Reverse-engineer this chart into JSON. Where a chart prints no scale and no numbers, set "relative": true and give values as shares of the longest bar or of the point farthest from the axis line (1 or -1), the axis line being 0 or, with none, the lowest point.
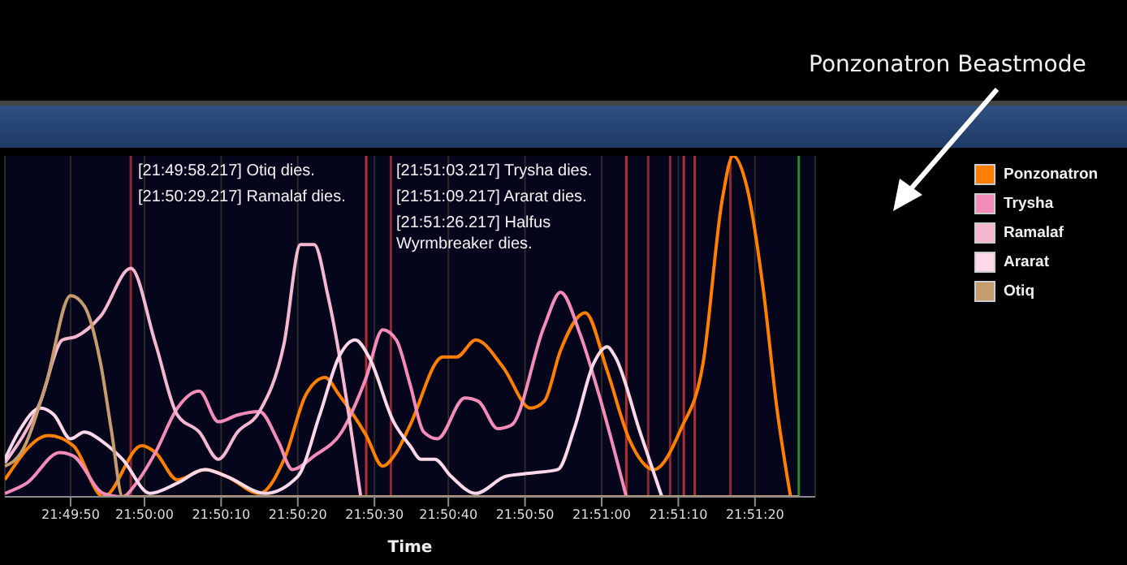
{
  "chart_data": {
    "type": "line",
    "relative": true,
    "xlabel": "Time",
    "legend": "top right",
    "grid": "x",
    "line_style": "solid",
    "xlim": [
      21.8282,
      21.8578
    ],
    "xticks": [
      {
        "value": 21.8306,
        "label": "21:49:50"
      },
      {
        "value": 21.8333,
        "label": "21:50:00"
      },
      {
        "value": 21.8361,
        "label": "21:50:10"
      },
      {
        "value": 21.8389,
        "label": "21:50:20"
      },
      {
        "value": 21.8417,
        "label": "21:50:30"
      },
      {
        "value": 21.8444,
        "label": "21:50:40"
      },
      {
        "value": 21.8472,
        "label": "21:50:50"
      },
      {
        "value": 21.85,
        "label": "21:51:00"
      },
      {
        "value": 21.8528,
        "label": "21:51:10"
      },
      {
        "value": 21.8556,
        "label": "21:51:20"
      }
    ],
    "series": [
      {
        "name": "Ponzonatron",
        "color": "#ff8000",
        "x": [
          21.8282,
          21.8298,
          21.8307,
          21.8318,
          21.8332,
          21.8337,
          21.8345,
          21.8355,
          21.8363,
          21.8375,
          21.8384,
          21.8392,
          21.8399,
          21.8404,
          21.8414,
          21.842,
          21.8425,
          21.843,
          21.8442,
          21.8447,
          21.8454,
          21.8464,
          21.8474,
          21.8479,
          21.8485,
          21.8494,
          21.8502,
          21.851,
          21.8519,
          21.8529,
          21.8537,
          21.8544,
          21.8548,
          21.8553,
          21.8559,
          21.8564,
          21.8569
        ],
        "values": [
          0.05,
          0.18,
          0.15,
          0,
          0.15,
          0.13,
          0.05,
          0.08,
          0.06,
          0.01,
          0.11,
          0.3,
          0.35,
          0.3,
          0.18,
          0.09,
          0.13,
          0.21,
          0.41,
          0.41,
          0.46,
          0.38,
          0.26,
          0.28,
          0.43,
          0.54,
          0.37,
          0.17,
          0.08,
          0.2,
          0.39,
          0.87,
          1,
          0.91,
          0.61,
          0.26,
          0
        ]
      },
      {
        "name": "Trysha",
        "color": "#f48cba",
        "x": [
          21.8282,
          21.829,
          21.8302,
          21.8307,
          21.8318,
          21.8325,
          21.833,
          21.8337,
          21.8345,
          21.8353,
          21.836,
          21.8367,
          21.8375,
          21.8382,
          21.8387,
          21.8395,
          21.8405,
          21.8414,
          21.842,
          21.8425,
          21.843,
          21.8435,
          21.844,
          21.845,
          21.8455,
          21.8462,
          21.8467,
          21.8479,
          21.8485,
          21.8492,
          21.8499,
          21.8509
        ],
        "values": [
          0.01,
          0.04,
          0.13,
          0.12,
          0.01,
          0,
          0.04,
          0.13,
          0.26,
          0.31,
          0.22,
          0.24,
          0.25,
          0.16,
          0.08,
          0.12,
          0.19,
          0.35,
          0.49,
          0.46,
          0.33,
          0.19,
          0.17,
          0.29,
          0.28,
          0.2,
          0.21,
          0.5,
          0.6,
          0.48,
          0.3,
          0
        ]
      },
      {
        "name": "Ramalaf",
        "color": "#f5b8d0",
        "x": [
          21.8282,
          21.8295,
          21.8303,
          21.8308,
          21.8317,
          21.8328,
          21.8337,
          21.8345,
          21.8353,
          21.836,
          21.8367,
          21.8375,
          21.8384,
          21.839,
          21.8395,
          21.84,
          21.8412
        ],
        "values": [
          0.1,
          0.28,
          0.46,
          0.47,
          0.53,
          0.67,
          0.45,
          0.24,
          0.19,
          0.11,
          0.19,
          0.25,
          0.45,
          0.74,
          0.74,
          0.59,
          0
        ]
      },
      {
        "name": "Ararat",
        "color": "#fcd8e8",
        "x": [
          21.8282,
          21.8287,
          21.8295,
          21.83,
          21.8306,
          21.8311,
          21.8318,
          21.8325,
          21.8335,
          21.8345,
          21.8355,
          21.8363,
          21.8377,
          21.8389,
          21.8397,
          21.8404,
          21.841,
          21.8415,
          21.8424,
          21.843,
          21.8434,
          21.8439,
          21.8445,
          21.8454,
          21.8465,
          21.8475,
          21.8484,
          21.849,
          21.8497,
          21.8502,
          21.8505,
          21.8514,
          21.8522
        ],
        "values": [
          0.11,
          0.19,
          0.26,
          0.24,
          0.17,
          0.19,
          0.16,
          0.11,
          0.01,
          0.04,
          0.08,
          0.06,
          0.01,
          0.06,
          0.24,
          0.41,
          0.46,
          0.41,
          0.22,
          0.15,
          0.11,
          0.11,
          0.06,
          0.01,
          0.06,
          0.07,
          0.08,
          0.2,
          0.39,
          0.44,
          0.41,
          0.19,
          0
        ]
      },
      {
        "name": "Otiq",
        "color": "#c69b6d",
        "x": [
          21.8282,
          21.8288,
          21.8297,
          21.8306,
          21.8311,
          21.8317,
          21.8321,
          21.8325,
          21.8572
        ],
        "values": [
          0.09,
          0.13,
          0.33,
          0.59,
          0.56,
          0.39,
          0.19,
          0,
          0
        ]
      }
    ],
    "ref_lines": [
      {
        "axis": "x",
        "value": 21.8328,
        "color": "#8a2a35"
      },
      {
        "axis": "x",
        "value": 21.8414,
        "color": "#b03030"
      },
      {
        "axis": "x",
        "value": 21.8423,
        "color": "#8a2a35"
      },
      {
        "axis": "x",
        "value": 21.8509,
        "color": "#b03030"
      },
      {
        "axis": "x",
        "value": 21.8517,
        "color": "#8a2a35"
      },
      {
        "axis": "x",
        "value": 21.8525,
        "color": "#8a2a35"
      },
      {
        "axis": "x",
        "value": 21.853,
        "color": "#b03030"
      },
      {
        "axis": "x",
        "value": 21.8534,
        "color": "#b03030"
      },
      {
        "axis": "x",
        "value": 21.8547,
        "color": "#8a2a35"
      },
      {
        "axis": "x",
        "value": 21.8572,
        "color": "#2a8a2a"
      }
    ],
    "annotations": [
      "[21:49:58.217] Otiq dies.",
      "[21:50:29.217] Ramalaf dies.",
      "[21:51:03.217] Trysha dies.",
      "[21:51:09.217] Ararat dies.",
      "[21:51:26.217] Halfus Wyrmbreaker dies.",
      "Ponzonatron Beastmode"
    ]
  }
}
